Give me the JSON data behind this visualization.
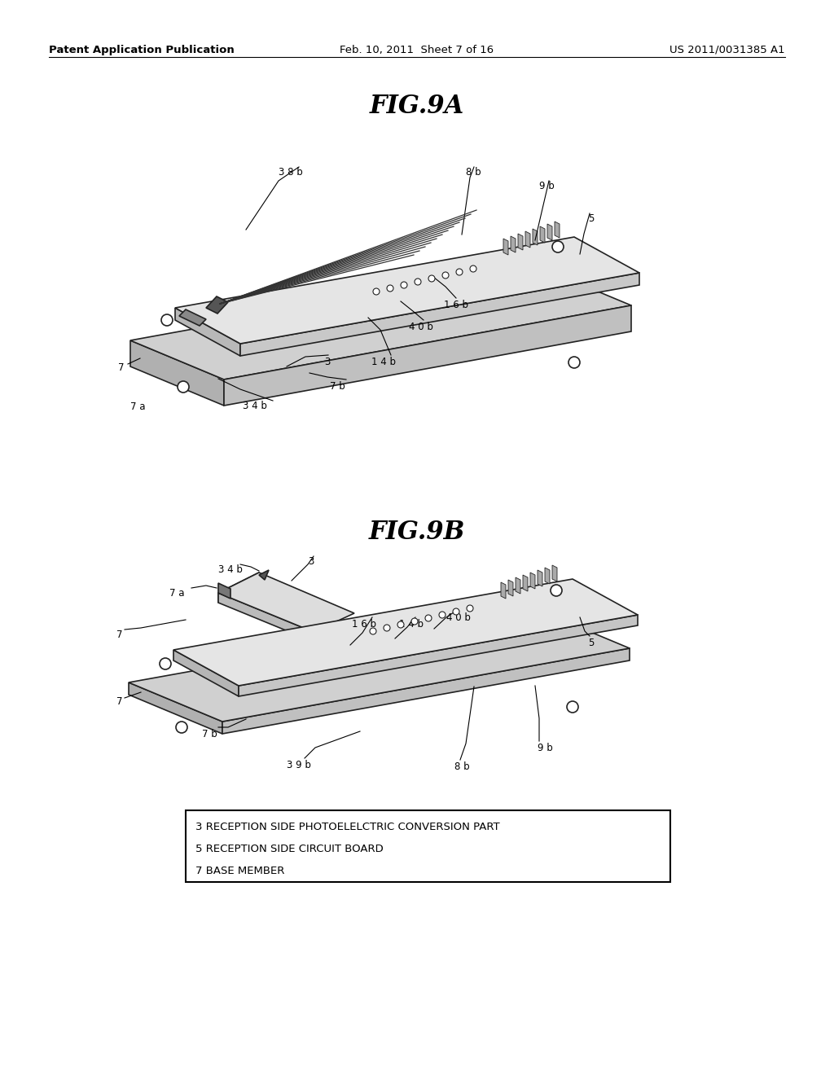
{
  "background_color": "#ffffff",
  "header_left": "Patent Application Publication",
  "header_center": "Feb. 10, 2011  Sheet 7 of 16",
  "header_right": "US 2011/0031385 A1",
  "fig9a_title": "FIG.9A",
  "fig9b_title": "FIG.9B",
  "legend_lines": [
    "3 RECEPTION SIDE PHOTOELELCTRIC CONVERSION PART",
    "5 RECEPTION SIDE CIRCUIT BOARD",
    "7 BASE MEMBER"
  ]
}
